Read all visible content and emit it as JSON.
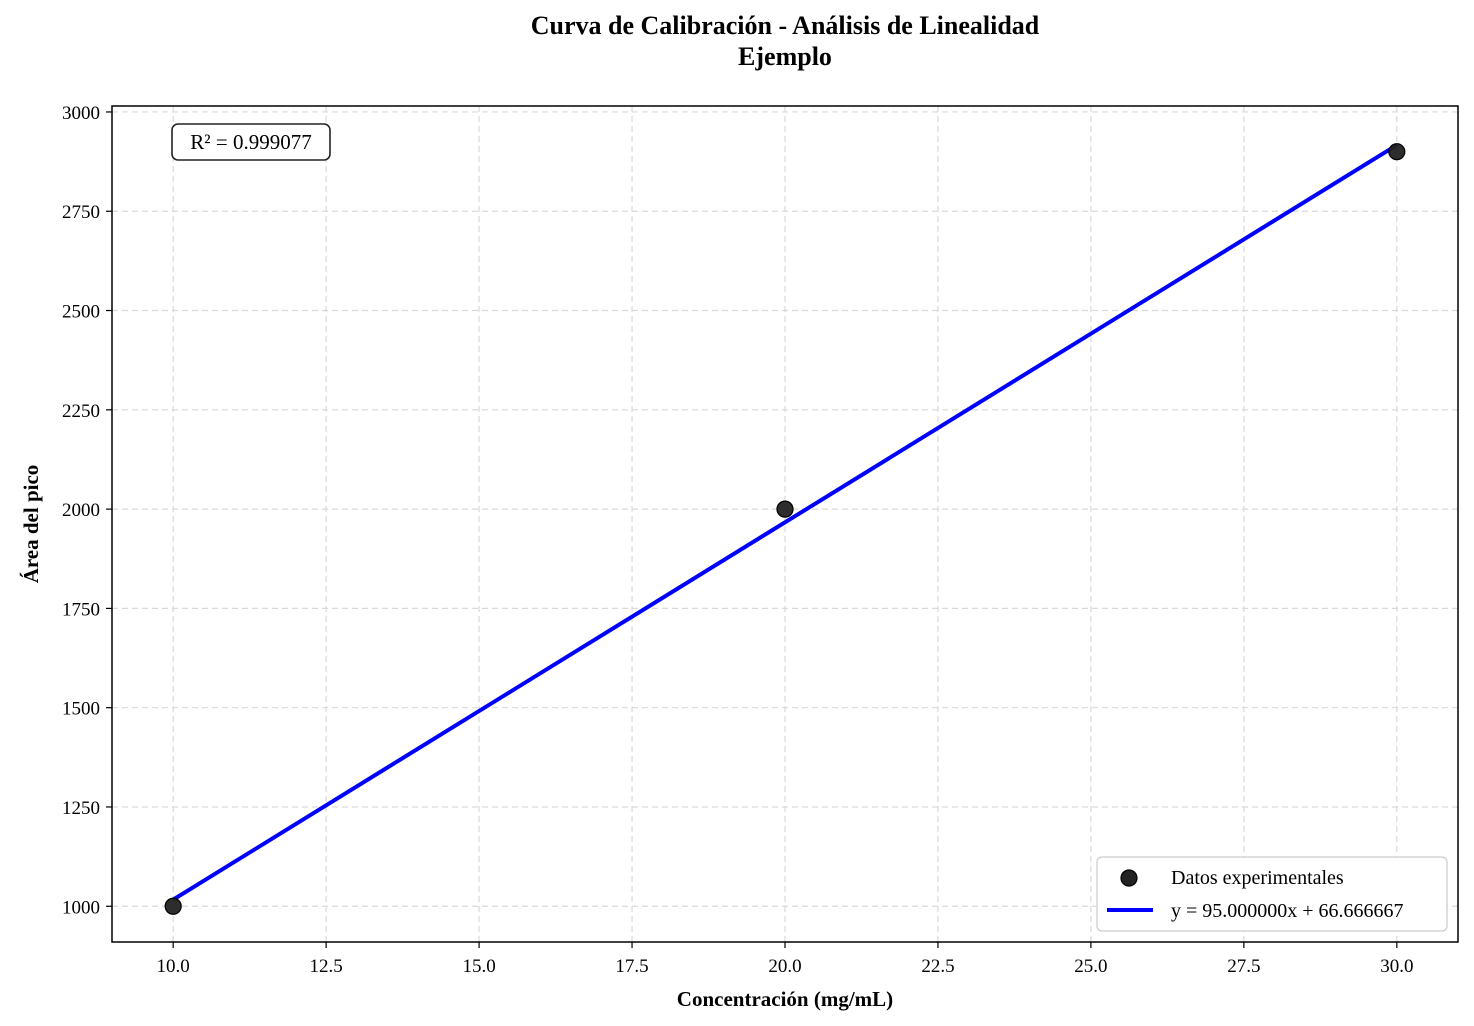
{
  "chart_data": {
    "type": "scatter",
    "title": "Curva de Calibración - Análisis de Linealidad",
    "subtitle": "Ejemplo",
    "xlabel": "Concentración (mg/mL)",
    "ylabel": "Área del pico",
    "xlim": [
      9.0,
      31.0
    ],
    "ylim": [
      910,
      3015
    ],
    "x_ticks": [
      10.0,
      12.5,
      15.0,
      17.5,
      20.0,
      22.5,
      25.0,
      27.5,
      30.0
    ],
    "x_tick_labels": [
      "10.0",
      "12.5",
      "15.0",
      "17.5",
      "20.0",
      "22.5",
      "25.0",
      "27.5",
      "30.0"
    ],
    "y_ticks": [
      1000,
      1250,
      1500,
      1750,
      2000,
      2250,
      2500,
      2750,
      3000
    ],
    "y_tick_labels": [
      "1000",
      "1250",
      "1500",
      "1750",
      "2000",
      "2250",
      "2500",
      "2750",
      "3000"
    ],
    "grid": true,
    "legend_position": "bottom-right",
    "series": [
      {
        "name": "Datos experimentales",
        "kind": "scatter",
        "color": "#222222",
        "x": [
          10,
          20,
          30
        ],
        "y": [
          1000,
          2000,
          2900
        ]
      },
      {
        "name": "y = 95.000000x + 66.666667",
        "kind": "line",
        "color": "#0000ff",
        "slope": 95.0,
        "intercept": 66.666667,
        "x": [
          10,
          30
        ],
        "y": [
          1016.666667,
          2916.666667
        ]
      }
    ],
    "annotation": "R² = 0.999077"
  }
}
